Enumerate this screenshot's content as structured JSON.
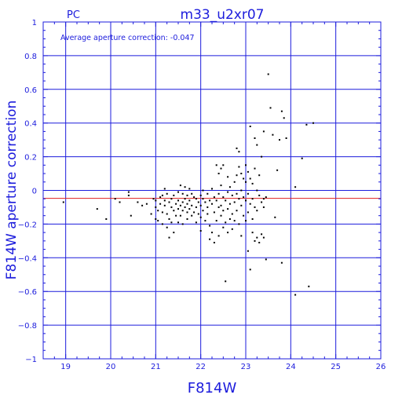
{
  "chart_data": {
    "type": "scatter",
    "detector": "PC",
    "title": "m33_u2xr07",
    "annotation": "Average aperture correction: -0.047",
    "xlabel": "F814W",
    "ylabel": "F814W aperture correction",
    "xlim": [
      18.5,
      26
    ],
    "ylim": [
      -1,
      1
    ],
    "xticks": [
      "19",
      "20",
      "21",
      "22",
      "23",
      "24",
      "25",
      "26"
    ],
    "yticks": [
      "1",
      "0.8",
      "0.6",
      "0.4",
      "0.2",
      "0",
      "−0.2",
      "−0.4",
      "−0.6",
      "−0.8",
      "−1"
    ],
    "grid": true,
    "reference_line": -0.047,
    "colors": {
      "frame": "#1c1cdc",
      "grid": "#1c1cdc",
      "reference": "#e02020",
      "points": "#000000"
    },
    "points": [
      [
        18.95,
        -0.07
      ],
      [
        19.7,
        -0.11
      ],
      [
        19.9,
        -0.17
      ],
      [
        20.1,
        -0.05
      ],
      [
        20.2,
        -0.07
      ],
      [
        20.4,
        -0.01
      ],
      [
        20.4,
        -0.03
      ],
      [
        20.45,
        -0.15
      ],
      [
        20.6,
        -0.07
      ],
      [
        20.7,
        -0.09
      ],
      [
        20.8,
        -0.08
      ],
      [
        20.9,
        -0.14
      ],
      [
        20.95,
        -0.05
      ],
      [
        21.0,
        -0.06
      ],
      [
        21.0,
        -0.1
      ],
      [
        21.05,
        -0.12
      ],
      [
        21.0,
        -0.17
      ],
      [
        21.05,
        -0.18
      ],
      [
        21.1,
        -0.04
      ],
      [
        21.1,
        -0.08
      ],
      [
        21.15,
        -0.03
      ],
      [
        21.15,
        -0.13
      ],
      [
        21.15,
        -0.2
      ],
      [
        21.2,
        0.01
      ],
      [
        21.2,
        -0.06
      ],
      [
        21.2,
        -0.09
      ],
      [
        21.25,
        -0.02
      ],
      [
        21.25,
        -0.14
      ],
      [
        21.25,
        -0.22
      ],
      [
        21.3,
        -0.07
      ],
      [
        21.3,
        -0.17
      ],
      [
        21.3,
        -0.28
      ],
      [
        21.35,
        -0.05
      ],
      [
        21.35,
        -0.1
      ],
      [
        21.35,
        -0.19
      ],
      [
        21.4,
        -0.03
      ],
      [
        21.4,
        -0.12
      ],
      [
        21.4,
        -0.25
      ],
      [
        21.45,
        -0.08
      ],
      [
        21.45,
        -0.15
      ],
      [
        21.5,
        -0.01
      ],
      [
        21.5,
        -0.06
      ],
      [
        21.5,
        -0.11
      ],
      [
        21.5,
        -0.19
      ],
      [
        21.55,
        0.03
      ],
      [
        21.55,
        -0.09
      ],
      [
        21.55,
        -0.15
      ],
      [
        21.6,
        -0.02
      ],
      [
        21.6,
        -0.07
      ],
      [
        21.6,
        -0.12
      ],
      [
        21.6,
        -0.2
      ],
      [
        21.65,
        0.02
      ],
      [
        21.65,
        -0.05
      ],
      [
        21.65,
        -0.1
      ],
      [
        21.7,
        -0.03
      ],
      [
        21.7,
        -0.08
      ],
      [
        21.7,
        -0.13
      ],
      [
        21.7,
        -0.17
      ],
      [
        21.75,
        0.01
      ],
      [
        21.75,
        -0.06
      ],
      [
        21.75,
        -0.11
      ],
      [
        21.8,
        -0.02
      ],
      [
        21.8,
        -0.09
      ],
      [
        21.8,
        -0.15
      ],
      [
        21.85,
        -0.04
      ],
      [
        21.85,
        -0.13
      ],
      [
        21.9,
        -0.05
      ],
      [
        21.9,
        -0.1
      ],
      [
        21.9,
        -0.19
      ],
      [
        21.95,
        -0.07
      ],
      [
        21.95,
        -0.14
      ],
      [
        22.0,
        -0.03
      ],
      [
        22.0,
        -0.09
      ],
      [
        22.0,
        -0.16
      ],
      [
        22.0,
        -0.24
      ],
      [
        22.05,
        0.0
      ],
      [
        22.05,
        -0.05
      ],
      [
        22.05,
        -0.12
      ],
      [
        22.1,
        -0.07
      ],
      [
        22.1,
        -0.18
      ],
      [
        22.15,
        -0.02
      ],
      [
        22.15,
        -0.1
      ],
      [
        22.15,
        -0.14
      ],
      [
        22.2,
        -0.06
      ],
      [
        22.2,
        -0.21
      ],
      [
        22.2,
        -0.29
      ],
      [
        22.25,
        0.01
      ],
      [
        22.25,
        -0.08
      ],
      [
        22.25,
        -0.25
      ],
      [
        22.3,
        -0.04
      ],
      [
        22.3,
        -0.13
      ],
      [
        22.3,
        -0.31
      ],
      [
        22.35,
        0.15
      ],
      [
        22.35,
        -0.06
      ],
      [
        22.35,
        -0.18
      ],
      [
        22.4,
        0.1
      ],
      [
        22.4,
        -0.02
      ],
      [
        22.4,
        -0.1
      ],
      [
        22.4,
        -0.27
      ],
      [
        22.45,
        0.13
      ],
      [
        22.45,
        0.03
      ],
      [
        22.45,
        -0.09
      ],
      [
        22.45,
        -0.15
      ],
      [
        22.5,
        0.15
      ],
      [
        22.5,
        -0.04
      ],
      [
        22.5,
        -0.12
      ],
      [
        22.5,
        -0.22
      ],
      [
        22.55,
        -0.54
      ],
      [
        22.55,
        -0.06
      ],
      [
        22.55,
        -0.19
      ],
      [
        22.6,
        0.08
      ],
      [
        22.6,
        -0.01
      ],
      [
        22.6,
        -0.11
      ],
      [
        22.6,
        -0.25
      ],
      [
        22.65,
        0.02
      ],
      [
        22.65,
        -0.08
      ],
      [
        22.65,
        -0.17
      ],
      [
        22.7,
        -0.03
      ],
      [
        22.7,
        -0.14
      ],
      [
        22.7,
        -0.23
      ],
      [
        22.75,
        0.05
      ],
      [
        22.75,
        -0.07
      ],
      [
        22.75,
        -0.18
      ],
      [
        22.8,
        0.25
      ],
      [
        22.8,
        0.09
      ],
      [
        22.8,
        -0.02
      ],
      [
        22.8,
        -0.12
      ],
      [
        22.85,
        0.23
      ],
      [
        22.85,
        0.14
      ],
      [
        22.85,
        -0.05
      ],
      [
        22.85,
        -0.2
      ],
      [
        22.9,
        0.1
      ],
      [
        22.9,
        0.0
      ],
      [
        22.9,
        -0.09
      ],
      [
        22.9,
        -0.27
      ],
      [
        22.95,
        0.07
      ],
      [
        22.95,
        -0.04
      ],
      [
        22.95,
        -0.15
      ],
      [
        23.0,
        0.15
      ],
      [
        23.0,
        0.05
      ],
      [
        23.0,
        -0.06
      ],
      [
        23.0,
        -0.18
      ],
      [
        23.05,
        0.11
      ],
      [
        23.05,
        -0.02
      ],
      [
        23.05,
        -0.13
      ],
      [
        23.05,
        -0.36
      ],
      [
        23.1,
        0.38
      ],
      [
        23.1,
        0.07
      ],
      [
        23.1,
        -0.08
      ],
      [
        23.1,
        -0.47
      ],
      [
        23.15,
        0.04
      ],
      [
        23.15,
        -0.05
      ],
      [
        23.15,
        -0.17
      ],
      [
        23.15,
        -0.25
      ],
      [
        23.2,
        0.31
      ],
      [
        23.2,
        0.13
      ],
      [
        23.2,
        -0.1
      ],
      [
        23.2,
        -0.3
      ],
      [
        23.25,
        0.27
      ],
      [
        23.25,
        0.0
      ],
      [
        23.25,
        -0.12
      ],
      [
        23.25,
        -0.28
      ],
      [
        23.3,
        0.09
      ],
      [
        23.3,
        -0.03
      ],
      [
        23.3,
        -0.31
      ],
      [
        23.35,
        0.2
      ],
      [
        23.35,
        -0.07
      ],
      [
        23.35,
        -0.26
      ],
      [
        23.4,
        0.35
      ],
      [
        23.4,
        -0.05
      ],
      [
        23.4,
        -0.1
      ],
      [
        23.4,
        -0.28
      ],
      [
        23.45,
        -0.41
      ],
      [
        23.45,
        -0.04
      ],
      [
        23.5,
        0.69
      ],
      [
        23.55,
        0.49
      ],
      [
        23.6,
        0.33
      ],
      [
        23.65,
        -0.16
      ],
      [
        23.7,
        0.12
      ],
      [
        23.75,
        0.3
      ],
      [
        23.8,
        0.47
      ],
      [
        23.8,
        -0.43
      ],
      [
        23.85,
        0.43
      ],
      [
        23.9,
        0.31
      ],
      [
        24.1,
        -0.62
      ],
      [
        24.1,
        0.02
      ],
      [
        24.25,
        0.19
      ],
      [
        24.35,
        0.39
      ],
      [
        24.4,
        -0.57
      ],
      [
        24.5,
        0.4
      ]
    ]
  }
}
